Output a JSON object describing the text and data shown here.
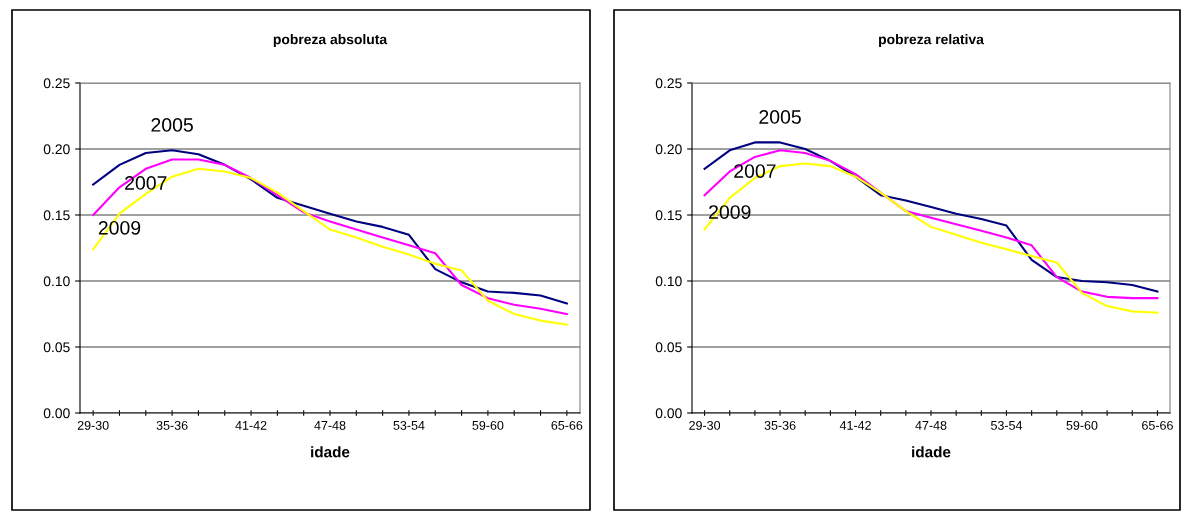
{
  "chart_data": [
    {
      "type": "line",
      "title": "pobreza absoluta",
      "xlabel": "idade",
      "categories": [
        "29-30",
        null,
        null,
        "35-36",
        null,
        null,
        "41-42",
        null,
        null,
        "47-48",
        null,
        null,
        "53-54",
        null,
        null,
        "59-60",
        null,
        null,
        "65-66"
      ],
      "series": [
        {
          "name": "2005",
          "color": "#000080",
          "values": [
            0.173,
            0.188,
            0.197,
            0.199,
            0.196,
            0.188,
            0.177,
            0.163,
            0.157,
            0.151,
            0.145,
            0.141,
            0.135,
            0.109,
            0.099,
            0.092,
            0.091,
            0.089,
            0.083
          ]
        },
        {
          "name": "2007",
          "color": "#ff00ff",
          "values": [
            0.15,
            0.171,
            0.185,
            0.192,
            0.192,
            0.188,
            0.178,
            0.165,
            0.152,
            0.145,
            0.139,
            0.133,
            0.127,
            0.121,
            0.097,
            0.087,
            0.082,
            0.079,
            0.075
          ]
        },
        {
          "name": "2009",
          "color": "#ffff00",
          "values": [
            0.124,
            0.151,
            0.166,
            0.179,
            0.185,
            0.183,
            0.178,
            0.167,
            0.153,
            0.139,
            0.133,
            0.126,
            0.12,
            0.113,
            0.108,
            0.085,
            0.075,
            0.07,
            0.067
          ]
        }
      ],
      "ylim": [
        0,
        0.25
      ],
      "yticks": [
        {
          "value": 0,
          "label": "0.00"
        },
        {
          "value": 0.05,
          "label": "0.05"
        },
        {
          "value": 0.1,
          "label": "0.10"
        },
        {
          "value": 0.15,
          "label": "0.15"
        },
        {
          "value": 0.2,
          "label": "0.20"
        },
        {
          "value": 0.25,
          "label": "0.25"
        }
      ],
      "grid": "y",
      "legend": false,
      "marker": "none",
      "line_style": "solid"
    },
    {
      "type": "line",
      "title": "pobreza relativa",
      "xlabel": "idade",
      "categories": [
        "29-30",
        null,
        null,
        "35-36",
        null,
        null,
        "41-42",
        null,
        null,
        "47-48",
        null,
        null,
        "53-54",
        null,
        null,
        "59-60",
        null,
        null,
        "65-66"
      ],
      "series": [
        {
          "name": "2005",
          "color": "#000080",
          "values": [
            0.185,
            0.199,
            0.205,
            0.205,
            0.2,
            0.191,
            0.179,
            0.165,
            0.161,
            0.156,
            0.151,
            0.147,
            0.142,
            0.116,
            0.103,
            0.1,
            0.099,
            0.097,
            0.092
          ]
        },
        {
          "name": "2007",
          "color": "#ff00ff",
          "values": [
            0.165,
            0.183,
            0.194,
            0.199,
            0.197,
            0.191,
            0.181,
            0.167,
            0.153,
            0.148,
            0.143,
            0.138,
            0.133,
            0.127,
            0.103,
            0.092,
            0.088,
            0.087,
            0.087
          ]
        },
        {
          "name": "2009",
          "color": "#ffff00",
          "values": [
            0.139,
            0.163,
            0.178,
            0.187,
            0.189,
            0.187,
            0.179,
            0.167,
            0.153,
            0.141,
            0.135,
            0.129,
            0.124,
            0.119,
            0.114,
            0.091,
            0.081,
            0.077,
            0.076
          ]
        }
      ],
      "ylim": [
        0,
        0.25
      ],
      "yticks": [
        {
          "value": 0,
          "label": "0.00"
        },
        {
          "value": 0.05,
          "label": "0.05"
        },
        {
          "value": 0.1,
          "label": "0.10"
        },
        {
          "value": 0.15,
          "label": "0.15"
        },
        {
          "value": 0.2,
          "label": "0.20"
        },
        {
          "value": 0.25,
          "label": "0.25"
        }
      ],
      "grid": "y",
      "legend": false,
      "marker": "none",
      "line_style": "solid"
    }
  ]
}
